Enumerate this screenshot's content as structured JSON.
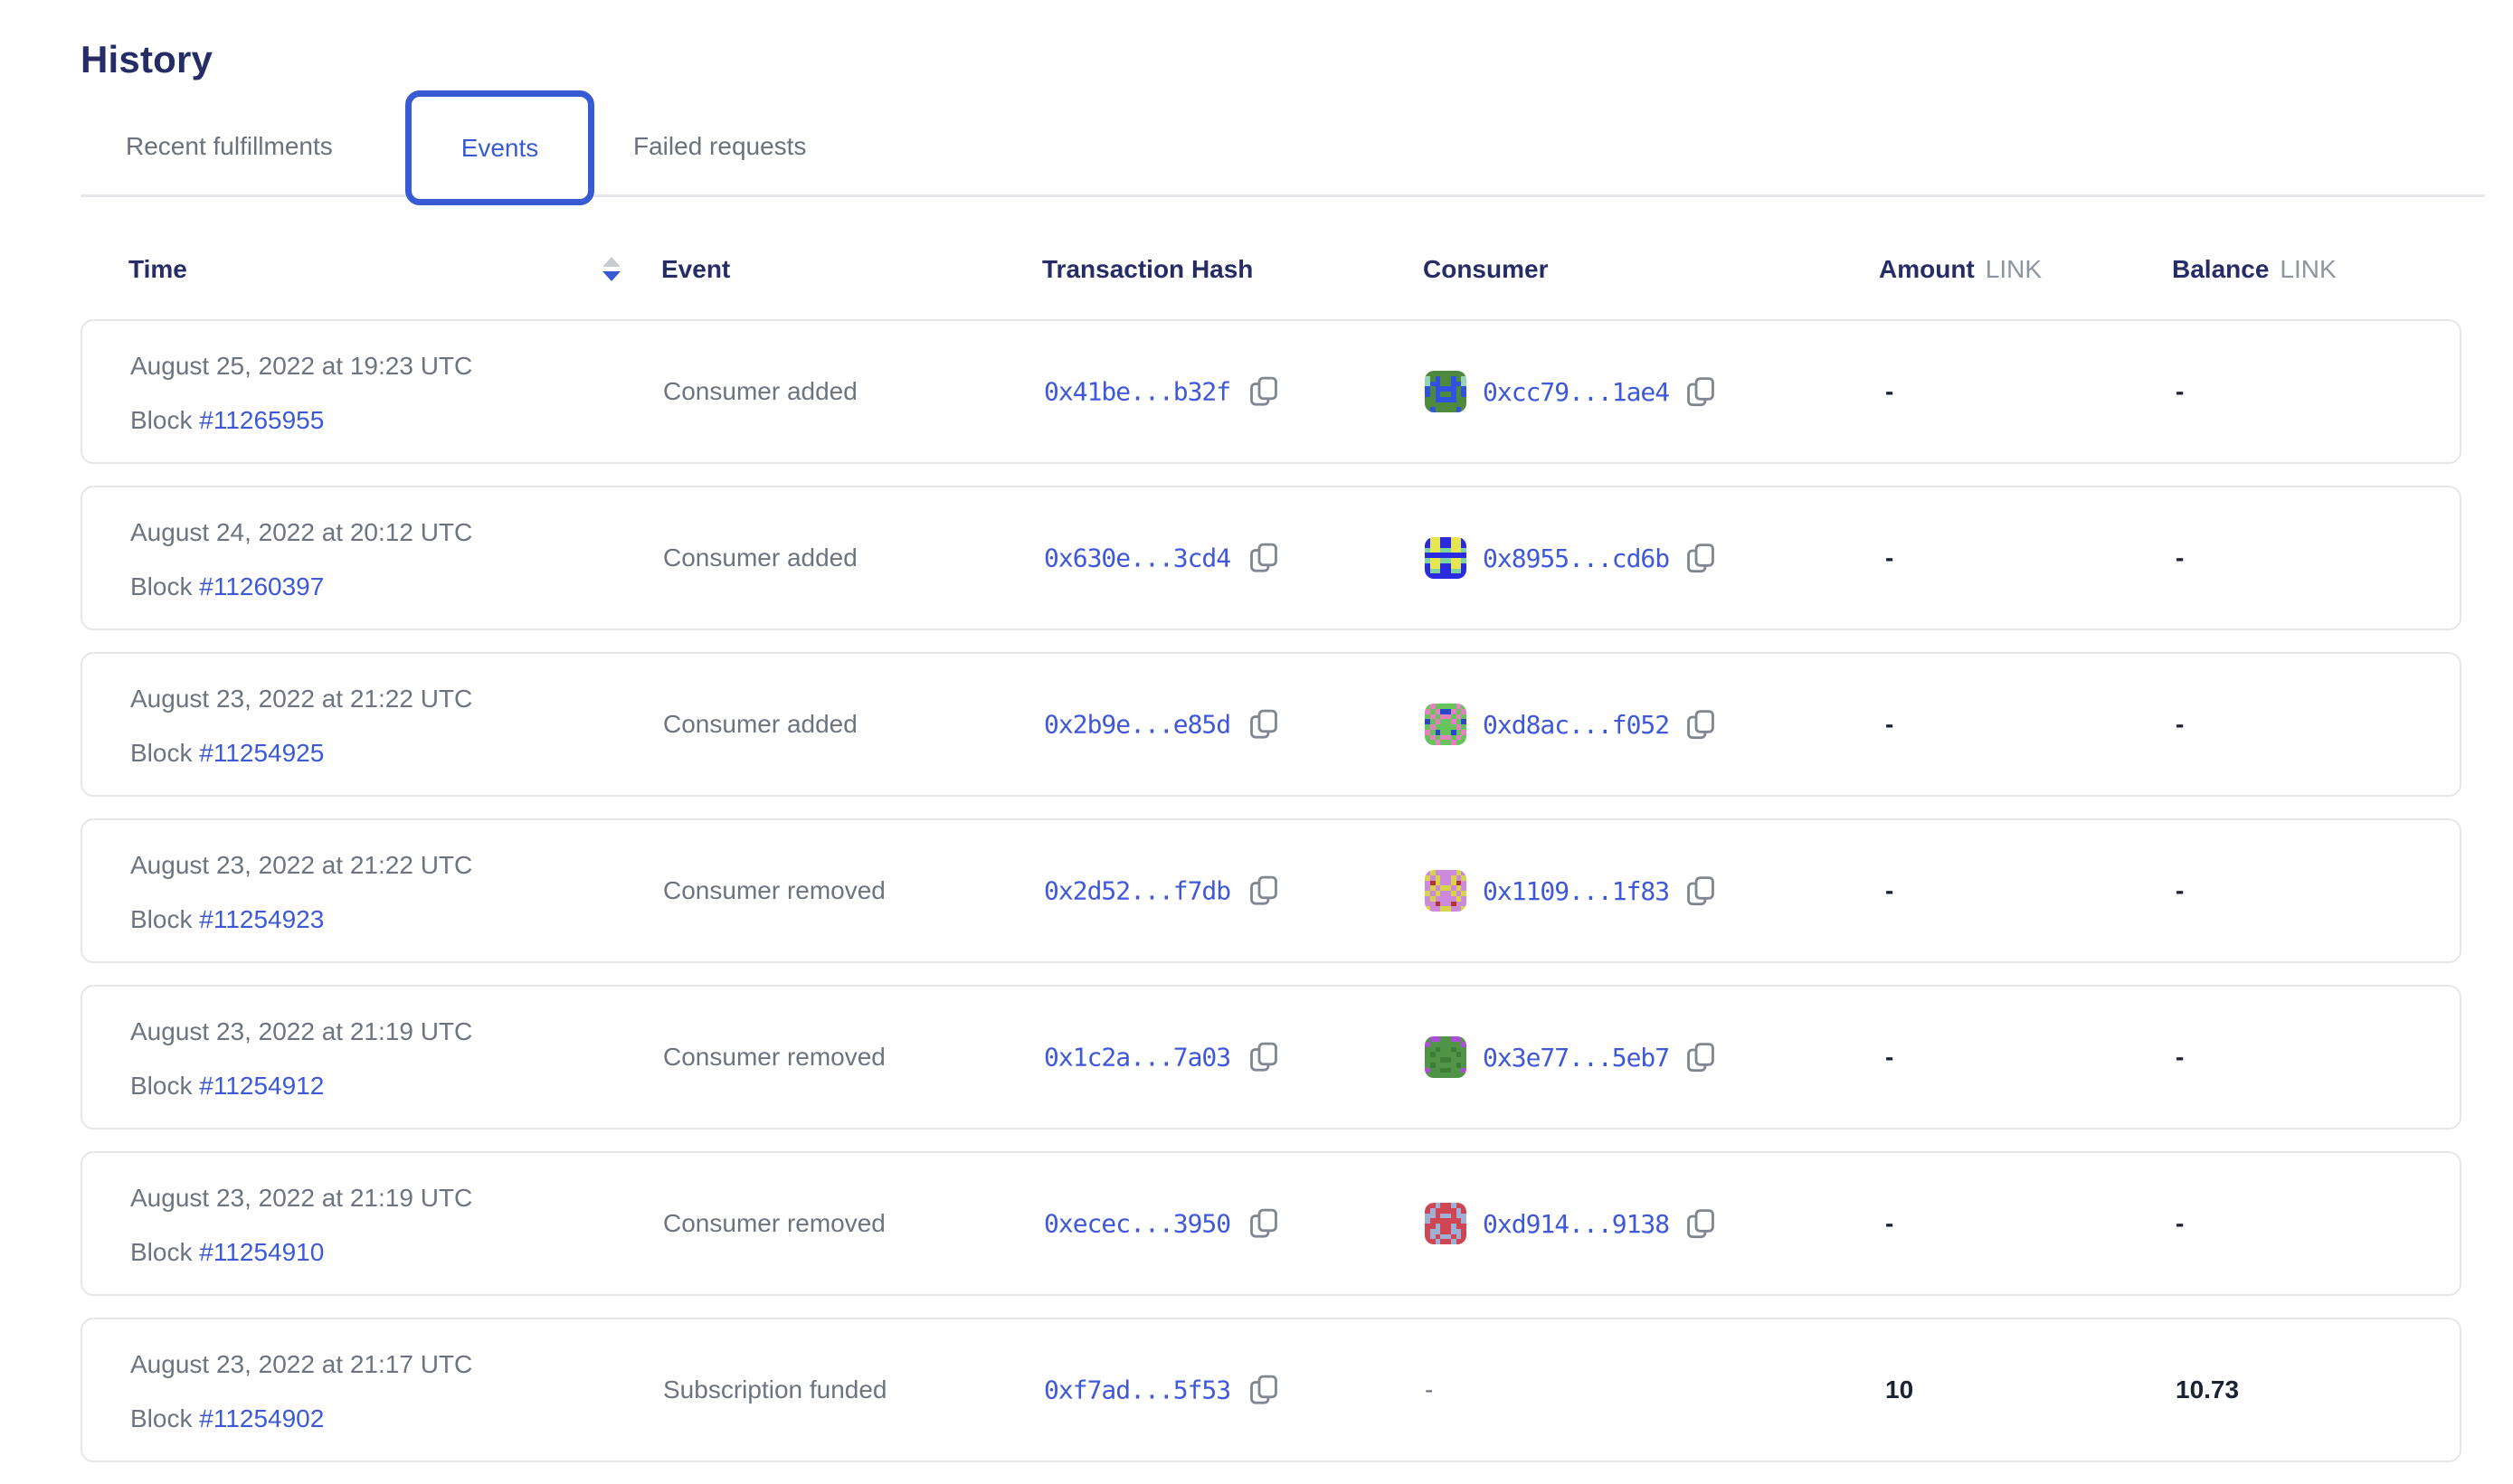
{
  "page": {
    "title": "History"
  },
  "tabs": [
    {
      "label": "Recent fulfillments",
      "active": false
    },
    {
      "label": "Events",
      "active": true
    },
    {
      "label": "Failed requests",
      "active": false
    }
  ],
  "colors": {
    "accent_blue": "#375bd2",
    "heading_navy": "#252c66",
    "link_blue": "#3d59d9",
    "muted_gray": "#6d7480",
    "value_dark": "#1b2333",
    "card_border": "#e4e6ea",
    "unit_gray": "#8f95a0"
  },
  "table": {
    "columns": {
      "time": "Time",
      "event": "Event",
      "tx_hash": "Transaction Hash",
      "consumer": "Consumer",
      "amount": "Amount",
      "balance": "Balance",
      "unit": "LINK"
    },
    "sort": {
      "column": "Time",
      "direction": "descending"
    },
    "rows": [
      {
        "date": "August 25, 2022 at 19:23 UTC",
        "block_label": "Block",
        "block": "#11265955",
        "event": "Consumer added",
        "tx": "0x41be...b32f",
        "consumer": {
          "address": "0xcc79...1ae4",
          "identicon": {
            "palette": {
              "G": "#4e8a3e",
              "B": "#3152e0",
              "T": "#96d4b2"
            },
            "rows": [
              "GGGGGGGG",
              "TGBGGBGT",
              "TBBGGBBT",
              "BGBBBBGB",
              "BGBGGBGB",
              "GGBBBBGG",
              "GGGGGGGG",
              "GBGGGGBG"
            ]
          }
        },
        "amount": "-",
        "balance": "-"
      },
      {
        "date": "August 24, 2022 at 20:12 UTC",
        "block_label": "Block",
        "block": "#11260397",
        "event": "Consumer added",
        "tx": "0x630e...3cd4",
        "consumer": {
          "address": "0x8955...cd6b",
          "identicon": {
            "palette": {
              "B": "#2a2ae0",
              "Y": "#e6e652",
              "G": "#7fd4a0"
            },
            "rows": [
              "BYYBBYYB",
              "BYYBBYYB",
              "GYYGGYYG",
              "BBBBBBBB",
              "GYYGGYYG",
              "BYYBBYYB",
              "BGGBBGGB",
              "BBBBBBBB"
            ]
          }
        },
        "amount": "-",
        "balance": "-"
      },
      {
        "date": "August 23, 2022 at 21:22 UTC",
        "block_label": "Block",
        "block": "#11254925",
        "event": "Consumer added",
        "tx": "0x2b9e...e85d",
        "consumer": {
          "address": "0xd8ac...f052",
          "identicon": {
            "palette": {
              "G": "#67c45c",
              "P": "#e77fc0",
              "N": "#2b47c9"
            },
            "rows": [
              "GPGGGGPG",
              "PGPNNPGP",
              "GPGPPGPG",
              "NGPGGPGN",
              "GPGGGGPG",
              "PGNGGNGP",
              "GPGPPGPG",
              "GGPGGPGG"
            ]
          }
        },
        "amount": "-",
        "balance": "-"
      },
      {
        "date": "August 23, 2022 at 21:22 UTC",
        "block_label": "Block",
        "block": "#11254923",
        "event": "Consumer removed",
        "tx": "0x2d52...f7db",
        "consumer": {
          "address": "0x1109...1f83",
          "identicon": {
            "palette": {
              "V": "#cc8ade",
              "Y": "#d8d44a",
              "R": "#b5342e"
            },
            "rows": [
              "VYVVVVYV",
              "YVYVVYVY",
              "VRYVVYRV",
              "VYVYYVYV",
              "YVYVVYVY",
              "VYVVVVYV",
              "VVRVVRVV",
              "YVVYYVVY"
            ]
          }
        },
        "amount": "-",
        "balance": "-"
      },
      {
        "date": "August 23, 2022 at 21:19 UTC",
        "block_label": "Block",
        "block": "#11254912",
        "event": "Consumer removed",
        "tx": "0x1c2a...7a03",
        "consumer": {
          "address": "0x3e77...5eb7",
          "identicon": {
            "palette": {
              "G": "#4f9447",
              "D": "#3e7d38",
              "P": "#ad4fd4"
            },
            "rows": [
              "GPPGGPPG",
              "PGGGGGGP",
              "GGDGGDGG",
              "GDGGGGDG",
              "GGGDDGGG",
              "GDGGGGDG",
              "PGGDDGGP",
              "GGGGGGGG"
            ]
          }
        },
        "amount": "-",
        "balance": "-"
      },
      {
        "date": "August 23, 2022 at 21:19 UTC",
        "block_label": "Block",
        "block": "#11254910",
        "event": "Consumer removed",
        "tx": "0xecec...3950",
        "consumer": {
          "address": "0xd914...9138",
          "identicon": {
            "palette": {
              "R": "#cf4652",
              "S": "#9fb0d6"
            },
            "rows": [
              "RRSRRSRR",
              "RSRRRRSR",
              "SSRSSRSS",
              "SRRRRRRS",
              "RRSRRSRR",
              "RSSRRSSR",
              "RSRSSRSR",
              "RRSRRSRR"
            ]
          }
        },
        "amount": "-",
        "balance": "-"
      },
      {
        "date": "August 23, 2022 at 21:17 UTC",
        "block_label": "Block",
        "block": "#11254902",
        "event": "Subscription funded",
        "tx": "0xf7ad...5f53",
        "consumer": {
          "address": "-"
        },
        "amount": "10",
        "balance": "10.73"
      }
    ]
  }
}
